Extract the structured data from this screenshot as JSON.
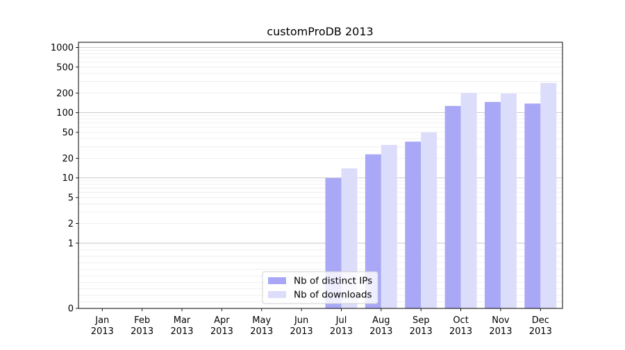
{
  "chart_data": {
    "type": "bar",
    "title": "customProDB 2013",
    "xlabel": "",
    "ylabel": "",
    "yscale": "symlog",
    "ylim": [
      0,
      1200
    ],
    "y_ticks": [
      0,
      1,
      2,
      5,
      10,
      20,
      50,
      100,
      200,
      500,
      1000
    ],
    "y_tick_labels": [
      "0",
      "1",
      "2",
      "5",
      "10",
      "20",
      "50",
      "100",
      "200",
      "500",
      "1000"
    ],
    "major_grid_values": [
      1,
      10,
      100,
      1000
    ],
    "minor_grid": true,
    "categories": [
      [
        "Jan",
        "2013"
      ],
      [
        "Feb",
        "2013"
      ],
      [
        "Mar",
        "2013"
      ],
      [
        "Apr",
        "2013"
      ],
      [
        "May",
        "2013"
      ],
      [
        "Jun",
        "2013"
      ],
      [
        "Jul",
        "2013"
      ],
      [
        "Aug",
        "2013"
      ],
      [
        "Sep",
        "2013"
      ],
      [
        "Oct",
        "2013"
      ],
      [
        "Nov",
        "2013"
      ],
      [
        "Dec",
        "2013"
      ]
    ],
    "series": [
      {
        "name": "Nb of distinct IPs",
        "color": "#a8a8f7",
        "values": [
          0,
          0,
          0,
          0,
          0,
          0,
          10,
          23,
          36,
          127,
          146,
          138
        ]
      },
      {
        "name": "Nb of downloads",
        "color": "#dcdcfb",
        "values": [
          0,
          0,
          0,
          0,
          0,
          0,
          14,
          32,
          50,
          201,
          196,
          285
        ]
      }
    ],
    "legend_position": "lower-center",
    "grid": true
  }
}
